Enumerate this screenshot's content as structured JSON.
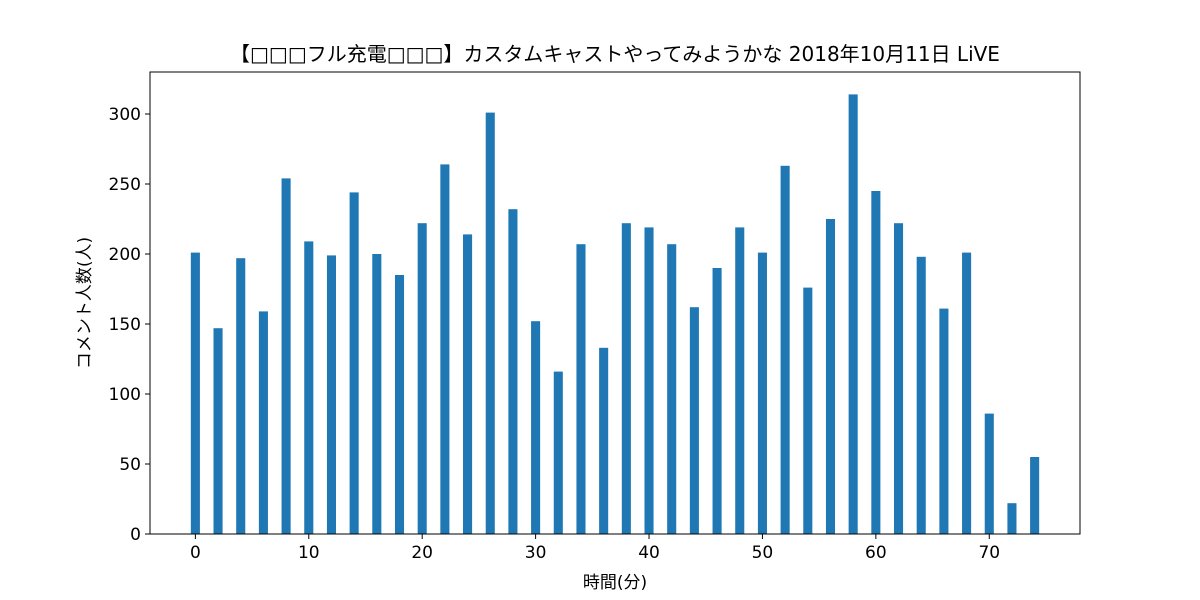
{
  "chart_data": {
    "type": "bar",
    "title": "【□□□フル充電□□□】カスタムキャストやってみようかな 2018年10月11日 LiVE",
    "xlabel": "時間(分)",
    "ylabel": "コメント人数(人)",
    "x": [
      0,
      2,
      4,
      6,
      8,
      10,
      12,
      14,
      16,
      18,
      20,
      22,
      24,
      26,
      28,
      30,
      32,
      34,
      36,
      38,
      40,
      42,
      44,
      46,
      48,
      50,
      52,
      54,
      56,
      58,
      60,
      62,
      64,
      66,
      68,
      70,
      72,
      74
    ],
    "values": [
      201,
      147,
      197,
      159,
      254,
      209,
      199,
      244,
      200,
      185,
      222,
      264,
      214,
      301,
      232,
      152,
      116,
      207,
      133,
      222,
      219,
      207,
      162,
      190,
      219,
      201,
      263,
      176,
      225,
      314,
      245,
      222,
      198,
      161,
      201,
      86,
      22,
      55
    ],
    "xlim": [
      -4,
      78
    ],
    "ylim": [
      0,
      330
    ],
    "xticks": [
      0,
      10,
      20,
      30,
      40,
      50,
      60,
      70
    ],
    "yticks": [
      0,
      50,
      100,
      150,
      200,
      250,
      300
    ],
    "bar_color": "#1f77b4",
    "grid": false,
    "legend": "none"
  }
}
